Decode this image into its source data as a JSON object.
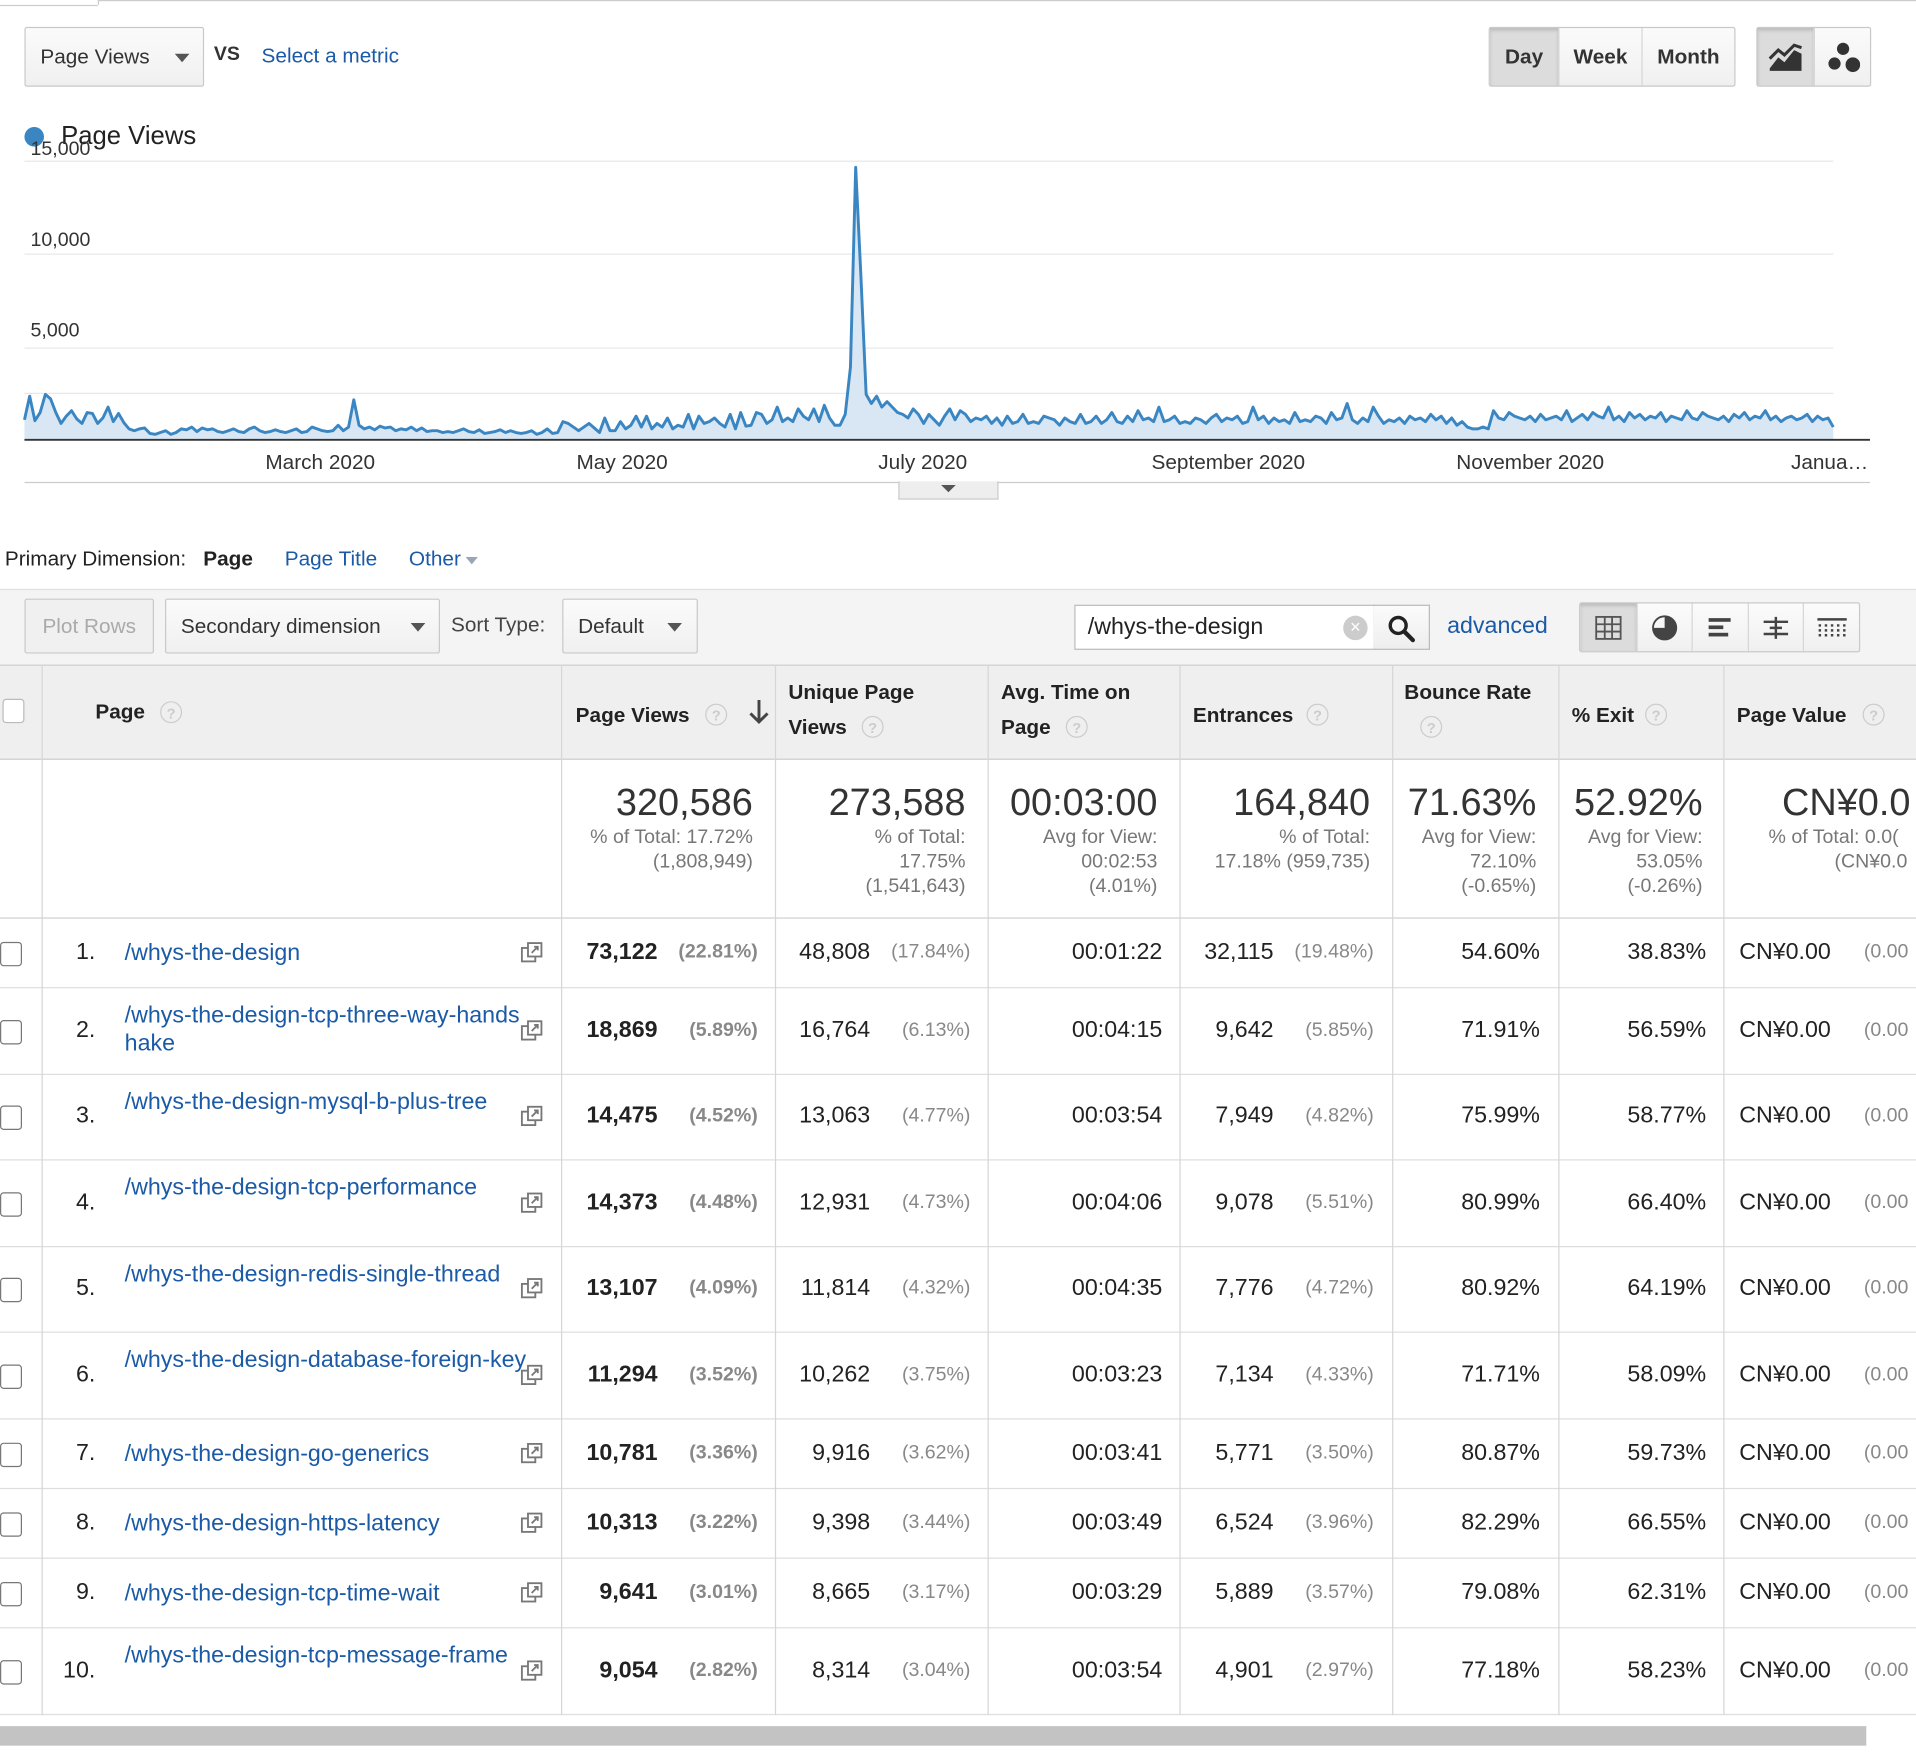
{
  "controls": {
    "metric_select": "Page Views",
    "vs_label": "VS",
    "select_metric": "Select a metric",
    "periods": [
      "Day",
      "Week",
      "Month"
    ],
    "active_period": "Day"
  },
  "chart_data": {
    "type": "line",
    "series": [
      {
        "name": "Page Views",
        "color": "#3a86c3"
      }
    ],
    "y_ticks": [
      "15,000",
      "10,000",
      "5,000"
    ],
    "y_tick_values": [
      15000,
      10000,
      5000
    ],
    "ylim": [
      0,
      15000
    ],
    "x_labels": [
      "March 2020",
      "May 2020",
      "July 2020",
      "September 2020",
      "November 2020",
      "Janua…"
    ],
    "values": [
      1100,
      2400,
      1050,
      1500,
      2500,
      2250,
      1500,
      900,
      1300,
      1600,
      1150,
      900,
      1500,
      1450,
      900,
      1200,
      1800,
      1000,
      1450,
      950,
      600,
      500,
      600,
      650,
      350,
      300,
      400,
      500,
      300,
      400,
      600,
      550,
      700,
      450,
      650,
      550,
      600,
      450,
      400,
      500,
      600,
      450,
      400,
      600,
      700,
      500,
      400,
      450,
      550,
      450,
      400,
      500,
      600,
      400,
      450,
      700,
      600,
      500,
      450,
      500,
      800,
      500,
      700,
      2200,
      800,
      600,
      700,
      550,
      750,
      650,
      700,
      500,
      600,
      550,
      700,
      500,
      650,
      450,
      500,
      500,
      400,
      450,
      400,
      500,
      600,
      450,
      400,
      550,
      350,
      400,
      450,
      550,
      400,
      500,
      400,
      350,
      400,
      500,
      300,
      400,
      600,
      350,
      400,
      1000,
      900,
      700,
      500,
      700,
      900,
      650,
      400,
      1200,
      500,
      500,
      1000,
      600,
      800,
      1300,
      700,
      1300,
      600,
      900,
      700,
      1200,
      600,
      800,
      700,
      1400,
      600,
      1300,
      900,
      1000,
      1200,
      900,
      700,
      1400,
      600,
      1500,
      750,
      800,
      1500,
      1400,
      900,
      1100,
      1800,
      1000,
      1200,
      1000,
      1700,
      1300,
      1100,
      1700,
      1000,
      1900,
      1200,
      800,
      800,
      1400,
      4000,
      15000,
      9000,
      2500,
      2000,
      2400,
      1800,
      2100,
      1800,
      1500,
      1400,
      1200,
      1700,
      1400,
      900,
      1400,
      1100,
      800,
      1300,
      1700,
      1100,
      1600,
      1400,
      1000,
      1200,
      1100,
      1300,
      900,
      1200,
      800,
      1300,
      900,
      1000,
      1400,
      900,
      1000,
      900,
      1300,
      1200,
      1100,
      800,
      1200,
      1000,
      900,
      1400,
      900,
      1000,
      1300,
      900,
      1100,
      1500,
      1000,
      900,
      1300,
      1000,
      1600,
      1100,
      1200,
      1000,
      1800,
      1000,
      1100,
      1300,
      900,
      1000,
      900,
      1200,
      1100,
      900,
      1200,
      1400,
      1000,
      1200,
      1100,
      1300,
      900,
      1000,
      1800,
      1100,
      1300,
      900,
      1200,
      1000,
      1100,
      900,
      1500,
      1000,
      1100,
      1000,
      1300,
      1200,
      900,
      1500,
      1100,
      1200,
      2000,
      1100,
      900,
      1200,
      1000,
      1800,
      1300,
      900,
      1100,
      1000,
      1200,
      900,
      1300,
      1100,
      1200,
      1000,
      1400,
      1100,
      1300,
      900,
      1200,
      800,
      1000,
      700,
      600,
      600,
      700,
      600,
      1600,
      1200,
      1100,
      1500,
      1300,
      1200,
      1100,
      1300,
      1000,
      1400,
      1100,
      1200,
      1300,
      1100,
      1600,
      1000,
      1200,
      1400,
      1100,
      1500,
      1300,
      1200,
      1800,
      1100,
      1300,
      1000,
      1500,
      1200,
      1400,
      1100,
      1300,
      1200,
      1500,
      1000,
      1300,
      1200,
      1100,
      1600,
      1200,
      1100,
      1500,
      1300,
      1200,
      1100,
      1300,
      1000,
      1400,
      1200,
      1500,
      1100,
      1300,
      1200,
      1600,
      1100,
      1300,
      1000,
      1200,
      1300,
      1100,
      1200,
      1400,
      1000,
      1300,
      1100,
      1200,
      700
    ]
  },
  "legend": {
    "label": "Page Views"
  },
  "dimension": {
    "label": "Primary Dimension:",
    "options": [
      "Page",
      "Page Title",
      "Other"
    ]
  },
  "toolbar": {
    "plot_rows": "Plot Rows",
    "secondary": "Secondary dimension",
    "sort_label": "Sort Type:",
    "sort_value": "Default",
    "search_value": "/whys-the-design",
    "advanced": "advanced"
  },
  "headers": {
    "page": "Page",
    "pageviews": "Page Views",
    "unique_1": "Unique Page",
    "unique_2": "Views",
    "avgtime_1": "Avg. Time on",
    "avgtime_2": "Page",
    "entrances": "Entrances",
    "bounce": "Bounce Rate",
    "exit": "% Exit",
    "value": "Page Value"
  },
  "totals": {
    "pageviews": {
      "main": "320,586",
      "sub": [
        "% of Total: 17.72%",
        "(1,808,949)"
      ]
    },
    "unique": {
      "main": "273,588",
      "sub": [
        "% of Total:",
        "17.75%",
        "(1,541,643)"
      ]
    },
    "avgtime": {
      "main": "00:03:00",
      "sub": [
        "Avg for View:",
        "00:02:53",
        "(4.01%)"
      ]
    },
    "entrances": {
      "main": "164,840",
      "sub": [
        "% of Total:",
        "17.18% (959,735)"
      ]
    },
    "bounce": {
      "main": "71.63%",
      "sub": [
        "Avg for View:",
        "72.10%",
        "(-0.65%)"
      ]
    },
    "exit": {
      "main": "52.92%",
      "sub": [
        "Avg for View:",
        "53.05%",
        "(-0.26%)"
      ]
    },
    "value": {
      "main": "CN¥0.0",
      "sub": [
        "% of Total: 0.0(",
        "(CN¥0.0"
      ]
    }
  },
  "rows": [
    {
      "num": "1.",
      "page": "/whys-the-design",
      "pv": "73,122",
      "pvp": "(22.81%)",
      "upv": "48,808",
      "upvp": "(17.84%)",
      "time": "00:01:22",
      "ent": "32,115",
      "entp": "(19.48%)",
      "bounce": "54.60%",
      "exit": "38.83%",
      "val": "CN¥0.00",
      "valp": "(0.00"
    },
    {
      "num": "2.",
      "page": "/whys-the-design-tcp-three-way-handshake",
      "pv": "18,869",
      "pvp": "(5.89%)",
      "upv": "16,764",
      "upvp": "(6.13%)",
      "time": "00:04:15",
      "ent": "9,642",
      "entp": "(5.85%)",
      "bounce": "71.91%",
      "exit": "56.59%",
      "val": "CN¥0.00",
      "valp": "(0.00"
    },
    {
      "num": "3.",
      "page": "/whys-the-design-mysql-b-plus-tree",
      "pv": "14,475",
      "pvp": "(4.52%)",
      "upv": "13,063",
      "upvp": "(4.77%)",
      "time": "00:03:54",
      "ent": "7,949",
      "entp": "(4.82%)",
      "bounce": "75.99%",
      "exit": "58.77%",
      "val": "CN¥0.00",
      "valp": "(0.00"
    },
    {
      "num": "4.",
      "page": "/whys-the-design-tcp-performance",
      "pv": "14,373",
      "pvp": "(4.48%)",
      "upv": "12,931",
      "upvp": "(4.73%)",
      "time": "00:04:06",
      "ent": "9,078",
      "entp": "(5.51%)",
      "bounce": "80.99%",
      "exit": "66.40%",
      "val": "CN¥0.00",
      "valp": "(0.00"
    },
    {
      "num": "5.",
      "page": "/whys-the-design-redis-single-thread",
      "pv": "13,107",
      "pvp": "(4.09%)",
      "upv": "11,814",
      "upvp": "(4.32%)",
      "time": "00:04:35",
      "ent": "7,776",
      "entp": "(4.72%)",
      "bounce": "80.92%",
      "exit": "64.19%",
      "val": "CN¥0.00",
      "valp": "(0.00"
    },
    {
      "num": "6.",
      "page": "/whys-the-design-database-foreign-key",
      "pv": "11,294",
      "pvp": "(3.52%)",
      "upv": "10,262",
      "upvp": "(3.75%)",
      "time": "00:03:23",
      "ent": "7,134",
      "entp": "(4.33%)",
      "bounce": "71.71%",
      "exit": "58.09%",
      "val": "CN¥0.00",
      "valp": "(0.00"
    },
    {
      "num": "7.",
      "page": "/whys-the-design-go-generics",
      "pv": "10,781",
      "pvp": "(3.36%)",
      "upv": "9,916",
      "upvp": "(3.62%)",
      "time": "00:03:41",
      "ent": "5,771",
      "entp": "(3.50%)",
      "bounce": "80.87%",
      "exit": "59.73%",
      "val": "CN¥0.00",
      "valp": "(0.00"
    },
    {
      "num": "8.",
      "page": "/whys-the-design-https-latency",
      "pv": "10,313",
      "pvp": "(3.22%)",
      "upv": "9,398",
      "upvp": "(3.44%)",
      "time": "00:03:49",
      "ent": "6,524",
      "entp": "(3.96%)",
      "bounce": "82.29%",
      "exit": "66.55%",
      "val": "CN¥0.00",
      "valp": "(0.00"
    },
    {
      "num": "9.",
      "page": "/whys-the-design-tcp-time-wait",
      "pv": "9,641",
      "pvp": "(3.01%)",
      "upv": "8,665",
      "upvp": "(3.17%)",
      "time": "00:03:29",
      "ent": "5,889",
      "entp": "(3.57%)",
      "bounce": "79.08%",
      "exit": "62.31%",
      "val": "CN¥0.00",
      "valp": "(0.00"
    },
    {
      "num": "10.",
      "page": "/whys-the-design-tcp-message-frame",
      "pv": "9,054",
      "pvp": "(2.82%)",
      "upv": "8,314",
      "upvp": "(3.04%)",
      "time": "00:03:54",
      "ent": "4,901",
      "entp": "(2.97%)",
      "bounce": "77.18%",
      "exit": "58.23%",
      "val": "CN¥0.00",
      "valp": "(0.00"
    }
  ]
}
